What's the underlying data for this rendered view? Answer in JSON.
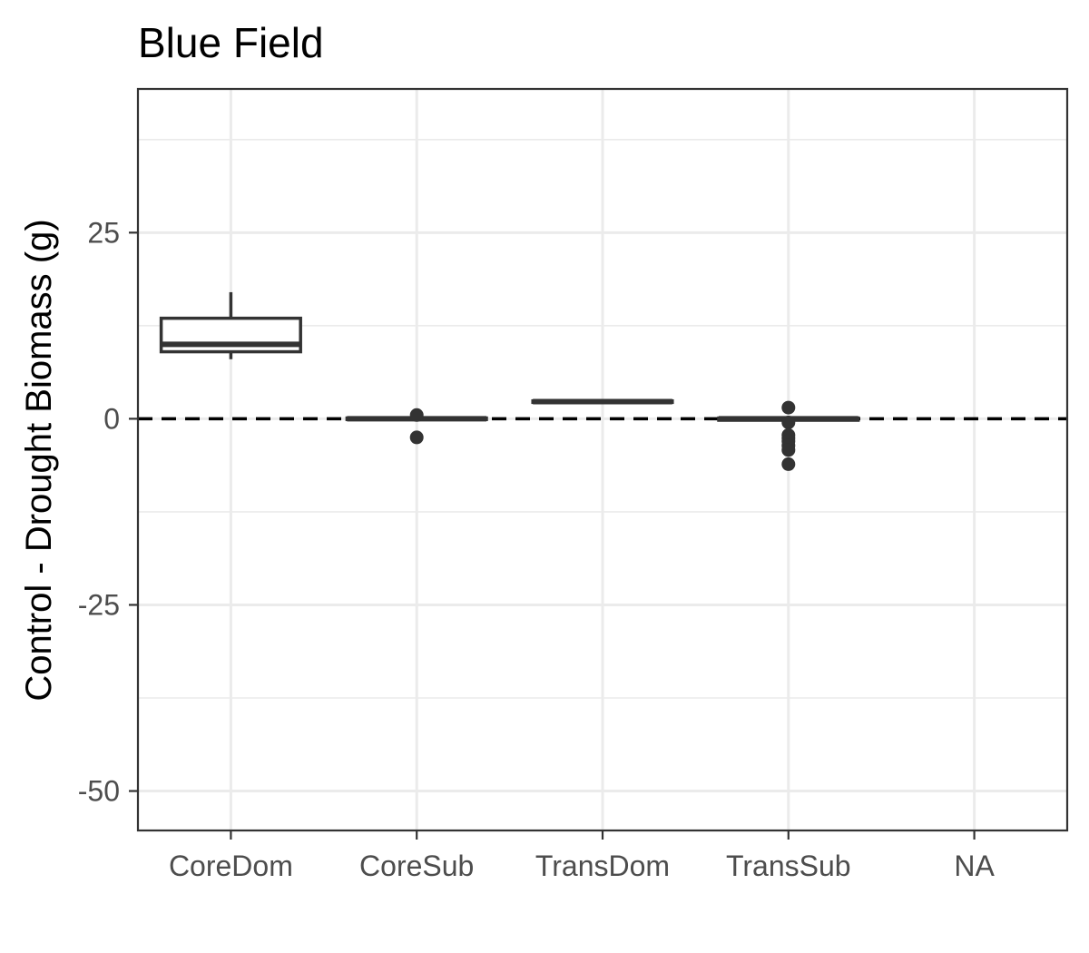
{
  "chart_data": {
    "type": "boxplot",
    "title": "Blue Field",
    "xlabel": "",
    "ylabel": "Control - Drought Biomass (g)",
    "categories": [
      "CoreDom",
      "CoreSub",
      "TransDom",
      "TransSub",
      "NA"
    ],
    "ylim": [
      -55.3,
      44.3
    ],
    "y_ticks": [
      -50,
      -25,
      0,
      25
    ],
    "y_tick_labels": [
      "-50",
      "-25",
      "0",
      "25"
    ],
    "reference_line": {
      "y": 0,
      "style": "dashed"
    },
    "grid": true,
    "boxes": [
      {
        "category": "CoreDom",
        "min": 8.0,
        "q1": 9.0,
        "median": 10.0,
        "q3": 13.5,
        "max": 17.0,
        "outliers": []
      },
      {
        "category": "CoreSub",
        "min": -0.2,
        "q1": -0.1,
        "median": 0.0,
        "q3": 0.1,
        "max": 0.2,
        "outliers": [
          0.5,
          -2.5
        ]
      },
      {
        "category": "TransDom",
        "min": 2.2,
        "q1": 2.2,
        "median": 2.3,
        "q3": 2.4,
        "max": 2.4,
        "outliers": []
      },
      {
        "category": "TransSub",
        "min": -0.3,
        "q1": -0.2,
        "median": 0.0,
        "q3": 0.1,
        "max": 0.3,
        "outliers": [
          1.5,
          -0.5,
          -2.2,
          -2.6,
          -3.0,
          -3.6,
          -4.2,
          -6.1
        ]
      },
      {
        "category": "NA",
        "min": null,
        "q1": null,
        "median": null,
        "q3": null,
        "max": null,
        "outliers": []
      }
    ],
    "colors": {
      "box_stroke": "#333333",
      "grid": "#ebebeb",
      "panel_border": "#333333",
      "tick_text": "#4d4d4d"
    }
  }
}
